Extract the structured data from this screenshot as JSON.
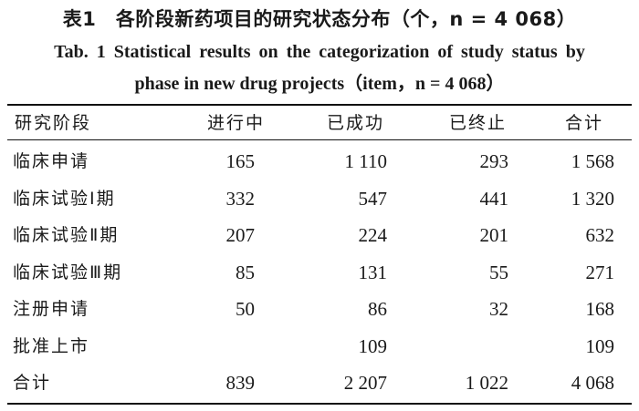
{
  "table": {
    "title_cn": "表1　各阶段新药项目的研究状态分布（个，n = 4 068）",
    "title_en_line1": "Tab. 1   Statistical results on the categorization of study status by",
    "title_en_line2": "phase in new drug projects（item，n = 4 068）",
    "headers": [
      "研究阶段",
      "进行中",
      "已成功",
      "已终止",
      "合计"
    ],
    "rows": [
      {
        "phase": "临床申请",
        "ongoing": "165",
        "success": "1 110",
        "terminated": "293",
        "total": "1 568"
      },
      {
        "phase": "临床试验Ⅰ期",
        "ongoing": "332",
        "success": "547",
        "terminated": "441",
        "total": "1 320"
      },
      {
        "phase": "临床试验Ⅱ期",
        "ongoing": "207",
        "success": "224",
        "terminated": "201",
        "total": "632"
      },
      {
        "phase": "临床试验Ⅲ期",
        "ongoing": "85",
        "success": "131",
        "terminated": "55",
        "total": "271"
      },
      {
        "phase": "注册申请",
        "ongoing": "50",
        "success": "86",
        "terminated": "32",
        "total": "168"
      },
      {
        "phase": "批准上市",
        "ongoing": "",
        "success": "109",
        "terminated": "",
        "total": "109"
      },
      {
        "phase": "合计",
        "ongoing": "839",
        "success": "2 207",
        "terminated": "1 022",
        "total": "4 068"
      }
    ]
  }
}
